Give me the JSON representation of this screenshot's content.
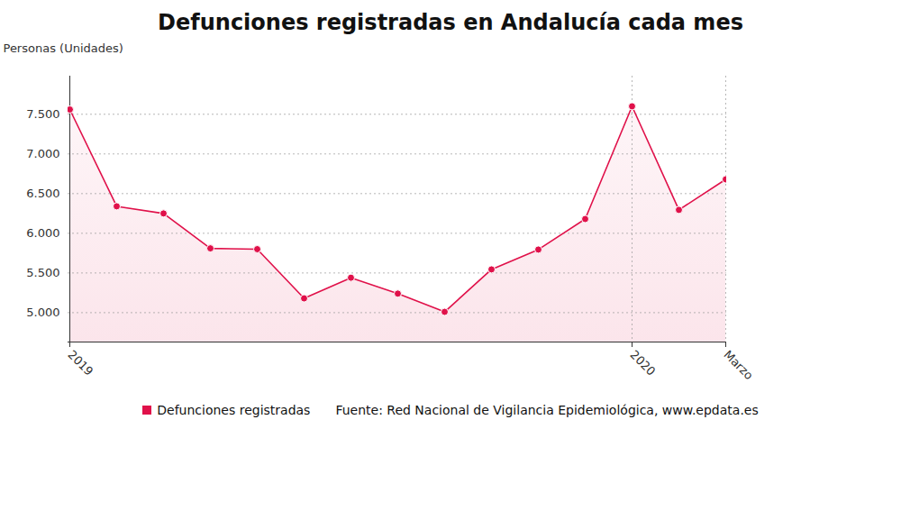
{
  "chart_data": {
    "type": "line",
    "title": "Defunciones registradas en Andalucía cada mes",
    "y_label": "Personas (Unidades)",
    "categories": [
      "2019",
      null,
      null,
      null,
      null,
      null,
      null,
      null,
      null,
      null,
      null,
      null,
      "2020",
      null,
      "Marzo"
    ],
    "series": [
      {
        "name": "Defunciones registradas",
        "color": "#e0114a",
        "marker": "circle",
        "values": [
          7560,
          6340,
          6250,
          5810,
          5800,
          5180,
          5440,
          5240,
          5010,
          5545,
          5795,
          6180,
          7600,
          6295,
          6680
        ]
      }
    ],
    "ylim": [
      4630,
      7980
    ],
    "yticks": [
      {
        "value": 5000,
        "label": "5.000"
      },
      {
        "value": 5500,
        "label": "5.500"
      },
      {
        "value": 6000,
        "label": "6.000"
      },
      {
        "value": 6500,
        "label": "6.500"
      },
      {
        "value": 7000,
        "label": "7.000"
      },
      {
        "value": 7500,
        "label": "7.500"
      }
    ],
    "grid": true,
    "legend": "bottom",
    "source": "Fuente: Red Nacional de Vigilancia Epidemiológica, www.epdata.es"
  }
}
